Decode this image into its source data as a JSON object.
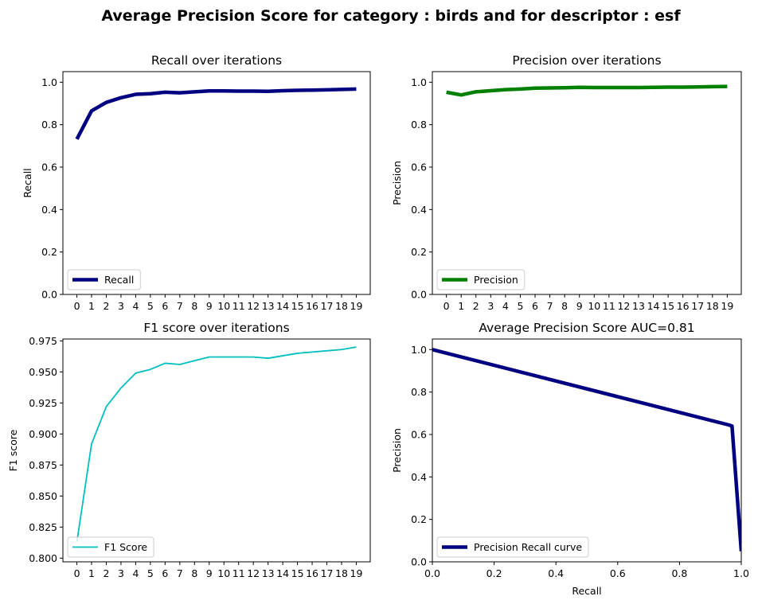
{
  "figure": {
    "suptitle": "Average Precision Score for category : birds and for descriptor : esf"
  },
  "chart_data": [
    {
      "id": "recall",
      "type": "line",
      "title": "Recall over iterations",
      "xlabel": "",
      "ylabel": "Recall",
      "x": [
        0,
        1,
        2,
        3,
        4,
        5,
        6,
        7,
        8,
        9,
        10,
        11,
        12,
        13,
        14,
        15,
        16,
        17,
        18,
        19
      ],
      "xticks": [
        "0",
        "1",
        "2",
        "3",
        "4",
        "5",
        "6",
        "7",
        "8",
        "9",
        "10",
        "11",
        "12",
        "13",
        "14",
        "15",
        "16",
        "17",
        "18",
        "19"
      ],
      "ylim": [
        0,
        1.05
      ],
      "yticks": [
        "0.0",
        "0.2",
        "0.4",
        "0.6",
        "0.8",
        "1.0"
      ],
      "series": [
        {
          "name": "Recall",
          "color": "#000080",
          "linewidth": "thick",
          "values": [
            0.732,
            0.865,
            0.905,
            0.927,
            0.943,
            0.946,
            0.953,
            0.95,
            0.955,
            0.959,
            0.959,
            0.958,
            0.958,
            0.957,
            0.96,
            0.962,
            0.963,
            0.964,
            0.966,
            0.968
          ]
        }
      ],
      "legend": "lower-left",
      "grid": false
    },
    {
      "id": "precision",
      "type": "line",
      "title": "Precision over iterations",
      "xlabel": "",
      "ylabel": "Precision",
      "x": [
        0,
        1,
        2,
        3,
        4,
        5,
        6,
        7,
        8,
        9,
        10,
        11,
        12,
        13,
        14,
        15,
        16,
        17,
        18,
        19
      ],
      "xticks": [
        "0",
        "1",
        "2",
        "3",
        "4",
        "5",
        "6",
        "7",
        "8",
        "9",
        "10",
        "11",
        "12",
        "13",
        "14",
        "15",
        "16",
        "17",
        "18",
        "19"
      ],
      "ylim": [
        0,
        1.05
      ],
      "yticks": [
        "0.0",
        "0.2",
        "0.4",
        "0.6",
        "0.8",
        "1.0"
      ],
      "series": [
        {
          "name": "Precision",
          "color": "#008000",
          "linewidth": "thick",
          "values": [
            0.953,
            0.94,
            0.955,
            0.96,
            0.965,
            0.968,
            0.972,
            0.973,
            0.974,
            0.976,
            0.975,
            0.975,
            0.975,
            0.975,
            0.976,
            0.977,
            0.977,
            0.978,
            0.979,
            0.98
          ]
        }
      ],
      "legend": "lower-left",
      "grid": false
    },
    {
      "id": "f1",
      "type": "line",
      "title": "F1 score over iterations",
      "xlabel": "",
      "ylabel": "F1 score",
      "x": [
        0,
        1,
        2,
        3,
        4,
        5,
        6,
        7,
        8,
        9,
        10,
        11,
        12,
        13,
        14,
        15,
        16,
        17,
        18,
        19
      ],
      "xticks": [
        "0",
        "1",
        "2",
        "3",
        "4",
        "5",
        "6",
        "7",
        "8",
        "9",
        "10",
        "11",
        "12",
        "13",
        "14",
        "15",
        "16",
        "17",
        "18",
        "19"
      ],
      "ylim": [
        0.797,
        0.9765
      ],
      "yticks": [
        "0.800",
        "0.825",
        "0.850",
        "0.875",
        "0.900",
        "0.925",
        "0.950",
        "0.975"
      ],
      "ytick_values": [
        0.8,
        0.825,
        0.85,
        0.875,
        0.9,
        0.925,
        0.95,
        0.975
      ],
      "series": [
        {
          "name": "F1 Score",
          "color": "#00BFBF",
          "linewidth": "thin",
          "values": [
            0.813,
            0.892,
            0.922,
            0.937,
            0.949,
            0.952,
            0.957,
            0.956,
            0.959,
            0.962,
            0.962,
            0.962,
            0.962,
            0.961,
            0.963,
            0.965,
            0.966,
            0.967,
            0.968,
            0.97
          ]
        }
      ],
      "legend": "lower-left",
      "grid": false
    },
    {
      "id": "pr",
      "type": "line",
      "title": "Average Precision Score AUC=0.81",
      "xlabel": "Recall",
      "ylabel": "Precision",
      "xlim": [
        0,
        1
      ],
      "xticks": [
        "0.0",
        "0.2",
        "0.4",
        "0.6",
        "0.8",
        "1.0"
      ],
      "xtick_values": [
        0,
        0.2,
        0.4,
        0.6,
        0.8,
        1.0
      ],
      "ylim": [
        0,
        1.05
      ],
      "yticks": [
        "0.0",
        "0.2",
        "0.4",
        "0.6",
        "0.8",
        "1.0"
      ],
      "series": [
        {
          "name": "Precision Recall curve",
          "color": "#000080",
          "linewidth": "thick",
          "x": [
            0.0,
            0.96,
            0.97,
            1.0
          ],
          "values": [
            1.0,
            0.645,
            0.64,
            0.05
          ]
        }
      ],
      "legend": "lower-left",
      "grid": false
    }
  ]
}
